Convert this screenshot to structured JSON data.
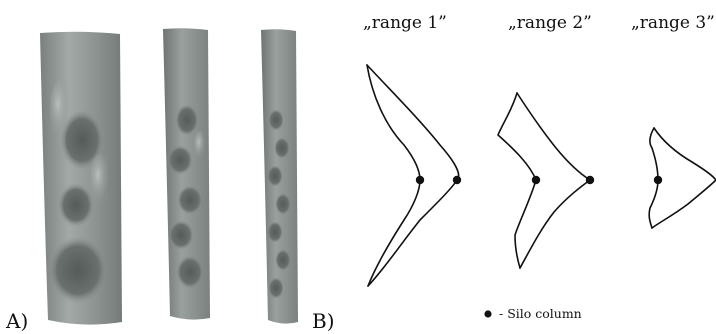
{
  "panels": {
    "a_label": "A)",
    "b_label": "B)"
  },
  "ranges": [
    {
      "title": "„range 1”"
    },
    {
      "title": "„range 2”"
    },
    {
      "title": "„range 3”"
    }
  ],
  "legend": {
    "text": "- Silo column"
  },
  "colors": {
    "shell_dark": "#6c7370",
    "shell_mid": "#8d9390",
    "shell_light": "#a7adab",
    "line": "#111111"
  }
}
